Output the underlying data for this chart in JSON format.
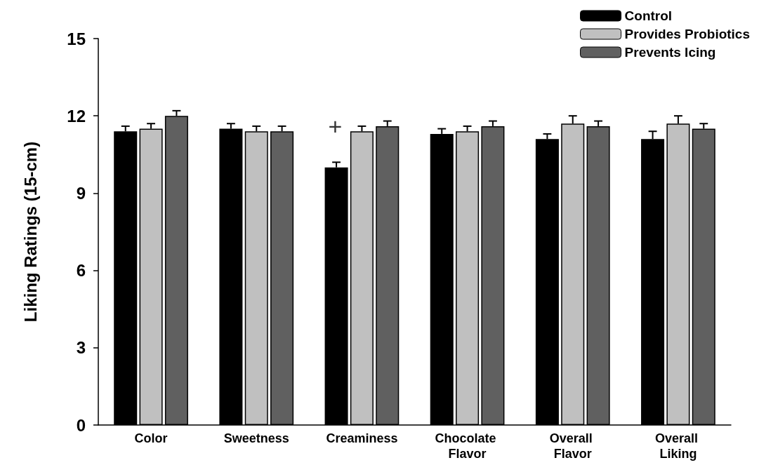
{
  "chart_data": {
    "type": "bar",
    "ylabel": "Liking Ratings (15-cm)",
    "categories": [
      "Color",
      "Sweetness",
      "Creaminess",
      "Chocolate Flavor",
      "Overall Flavor",
      "Overall Liking"
    ],
    "series": [
      {
        "name": "Control",
        "color": "#000000",
        "values": [
          11.4,
          11.5,
          10.0,
          11.3,
          11.1,
          11.1
        ],
        "errors": [
          0.2,
          0.2,
          0.2,
          0.2,
          0.2,
          0.3
        ]
      },
      {
        "name": "Provides Probiotics",
        "color": "#c0c0c0",
        "values": [
          11.5,
          11.4,
          11.4,
          11.4,
          11.7,
          11.7
        ],
        "errors": [
          0.2,
          0.2,
          0.2,
          0.2,
          0.3,
          0.3
        ]
      },
      {
        "name": "Prevents Icing",
        "color": "#606060",
        "values": [
          12.0,
          11.4,
          11.6,
          11.6,
          11.6,
          11.5
        ],
        "errors": [
          0.2,
          0.2,
          0.2,
          0.2,
          0.2,
          0.2
        ]
      }
    ],
    "ylim": [
      0,
      15
    ],
    "yticks": [
      0,
      3,
      6,
      9,
      12,
      15
    ],
    "grid": false,
    "legend": "top right",
    "annotations": [
      {
        "text": "+",
        "x": "Creaminess",
        "y": 11.6
      }
    ]
  }
}
